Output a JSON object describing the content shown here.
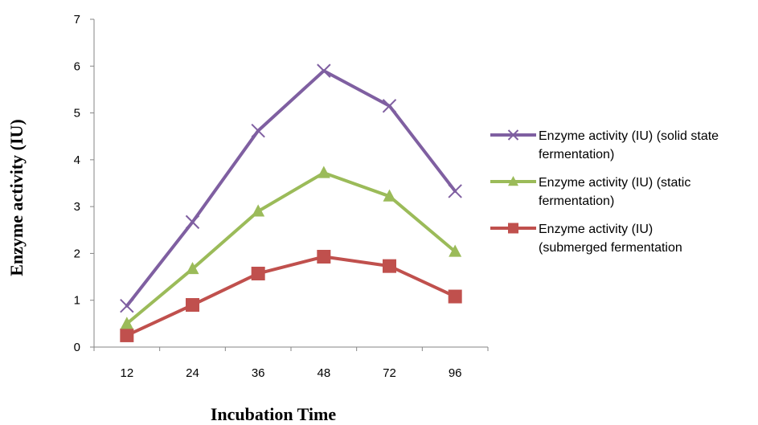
{
  "chart_data": {
    "type": "line",
    "title": "",
    "xlabel": "Incubation Time",
    "ylabel": "Enzyme activity (IU)",
    "categories": [
      "12",
      "24",
      "36",
      "48",
      "72",
      "96"
    ],
    "yticks": [
      "0",
      "1",
      "2",
      "3",
      "4",
      "5",
      "6",
      "7"
    ],
    "ylim": [
      0,
      7
    ],
    "grid": false,
    "legend_position": "right",
    "series": [
      {
        "name": "Enzyme activity (IU) (solid state fermentation)",
        "legend_lines": [
          "Enzyme activity (IU) (solid state",
          "fermentation)"
        ],
        "color": "#7f5fa1",
        "marker": "x",
        "values": [
          0.88,
          2.67,
          4.62,
          5.9,
          5.15,
          3.33
        ]
      },
      {
        "name": "Enzyme activity (IU) (static fermentation)",
        "legend_lines": [
          "Enzyme activity (IU) (static",
          "fermentation)"
        ],
        "color": "#9bbb59",
        "marker": "triangle",
        "values": [
          0.5,
          1.67,
          2.9,
          3.72,
          3.22,
          2.04
        ]
      },
      {
        "name": "Enzyme activity (IU) (submerged fermentation",
        "legend_lines": [
          "Enzyme activity (IU)",
          "(submerged fermentation"
        ],
        "color": "#c0504d",
        "marker": "square",
        "values": [
          0.25,
          0.9,
          1.57,
          1.93,
          1.73,
          1.08
        ]
      }
    ]
  }
}
